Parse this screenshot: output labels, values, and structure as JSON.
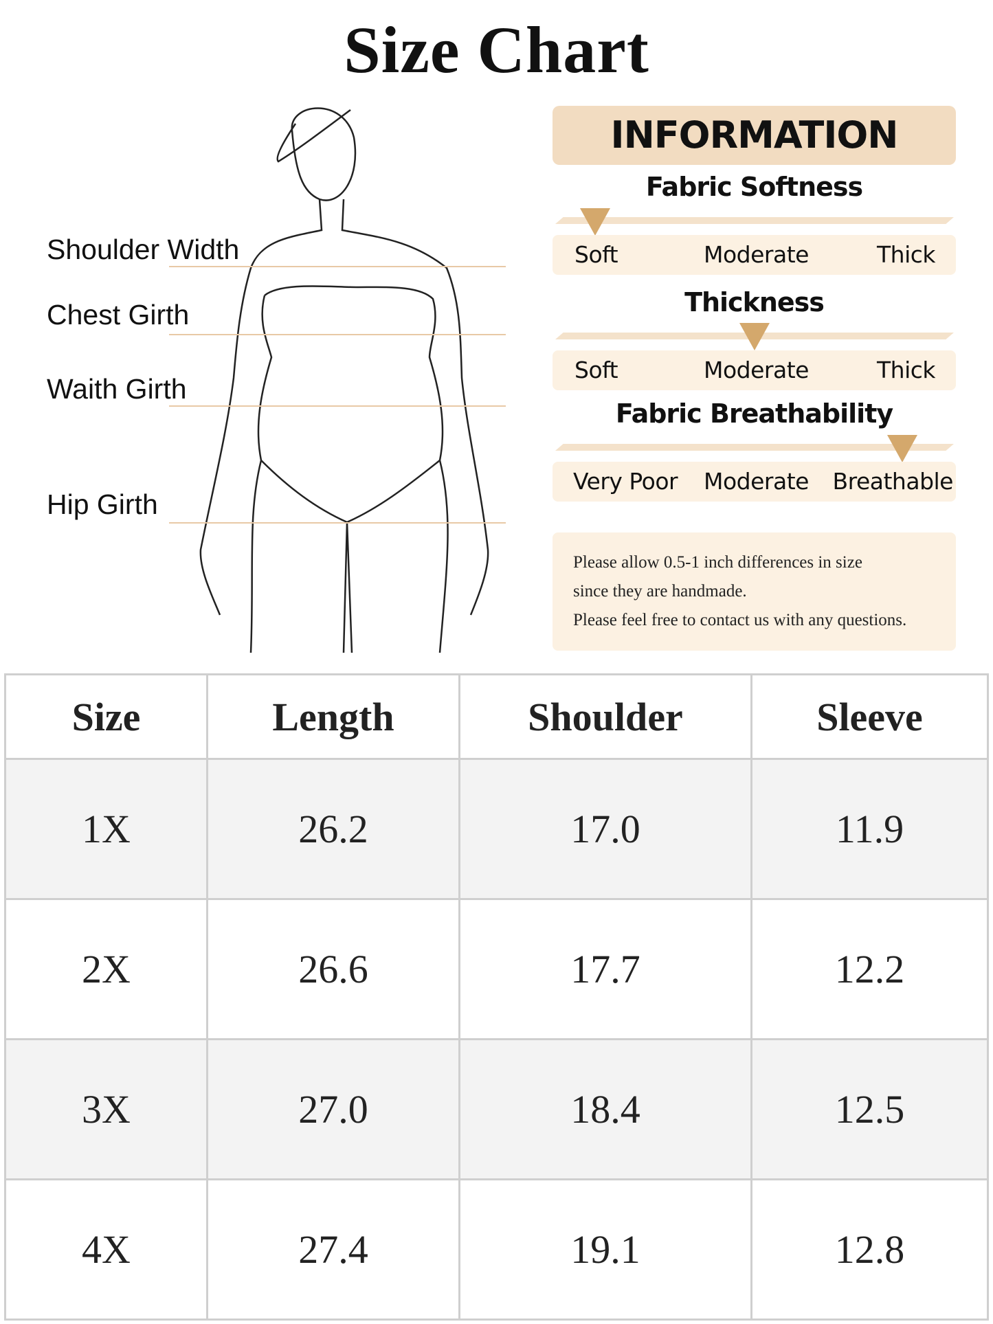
{
  "title": "Size Chart",
  "measurements": [
    "Shoulder Width",
    "Chest Girth",
    "Waith Girth",
    "Hip Girth"
  ],
  "information": {
    "heading": "INFORMATION",
    "scales": [
      {
        "title": "Fabric Softness",
        "labels": [
          "Soft",
          "Moderate",
          "Thick"
        ],
        "selected": "Soft",
        "level": 0.1
      },
      {
        "title": "Thickness",
        "labels": [
          "Soft",
          "Moderate",
          "Thick"
        ],
        "selected": "Moderate",
        "level": 0.5
      },
      {
        "title": "Fabric Breathability",
        "labels": [
          "Very Poor",
          "Moderate",
          "Breathable"
        ],
        "selected": "Breathable",
        "level": 0.87
      }
    ],
    "note": [
      "Please allow 0.5-1 inch differences in size",
      "since they are handmade.",
      "Please feel free to contact us with any questions."
    ]
  },
  "colors": {
    "accent": "#d4a86c",
    "header_bg": "#f2dcc1",
    "band_bg": "#fcf1e2",
    "line": "#e8c9a6"
  },
  "table": {
    "headers": [
      "Size",
      "Length",
      "Shoulder",
      "Sleeve"
    ],
    "rows": [
      [
        "1X",
        "26.2",
        "17.0",
        "11.9"
      ],
      [
        "2X",
        "26.6",
        "17.7",
        "12.2"
      ],
      [
        "3X",
        "27.0",
        "18.4",
        "12.5"
      ],
      [
        "4X",
        "27.4",
        "19.1",
        "12.8"
      ]
    ]
  }
}
